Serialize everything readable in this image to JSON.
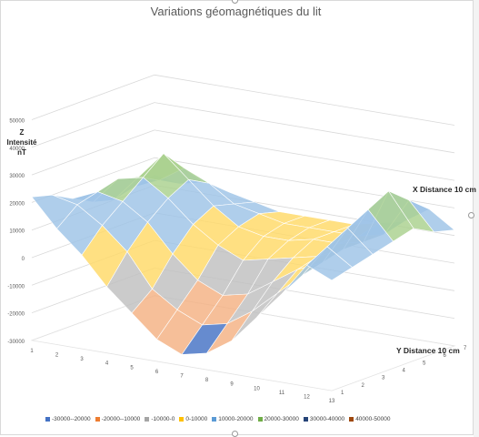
{
  "chart_data": {
    "type": "surface",
    "title": "Variations géomagnétiques du lit",
    "z_title_line1": "Z",
    "z_title_line2": "Intensité nT",
    "x_title": "X Distance 10 cm",
    "y_title": "Y Distance 10 cm",
    "z_ticks": [
      "50000",
      "40000",
      "30000",
      "20000",
      "10000",
      "0",
      "-10000",
      "-20000",
      "-30000"
    ],
    "z_values": [
      50000,
      40000,
      30000,
      20000,
      10000,
      0,
      -10000,
      -20000,
      -30000
    ],
    "zlim": [
      -30000,
      50000
    ],
    "x_ticks": [
      "1",
      "2",
      "3",
      "4",
      "5",
      "6",
      "7",
      "8",
      "9",
      "10",
      "11",
      "12",
      "13"
    ],
    "y_ticks": [
      "1",
      "2",
      "3",
      "4",
      "5",
      "6",
      "7"
    ],
    "grid": true,
    "legend_position": "bottom",
    "legend": [
      {
        "label": "-30000--20000",
        "color": "#4472c4"
      },
      {
        "label": "-20000--10000",
        "color": "#ed7d31"
      },
      {
        "label": "-10000-0",
        "color": "#a5a5a5"
      },
      {
        "label": "0-10000",
        "color": "#ffc000"
      },
      {
        "label": "10000-20000",
        "color": "#5b9bd5"
      },
      {
        "label": "20000-30000",
        "color": "#70ad47"
      },
      {
        "label": "30000-40000",
        "color": "#264478"
      },
      {
        "label": "40000-50000",
        "color": "#9e480e"
      }
    ],
    "values": [
      [
        22000,
        20000,
        16000,
        12000,
        10000,
        12000,
        14000
      ],
      [
        12000,
        18000,
        20000,
        22000,
        20000,
        16000,
        12000
      ],
      [
        4000,
        12000,
        18000,
        24000,
        30000,
        22000,
        14000
      ],
      [
        -6000,
        4000,
        12000,
        18000,
        22000,
        18000,
        12000
      ],
      [
        -14000,
        -8000,
        2000,
        10000,
        14000,
        12000,
        10000
      ],
      [
        -22000,
        -14000,
        -6000,
        4000,
        8000,
        10000,
        8000
      ],
      [
        -26000,
        -18000,
        -10000,
        0,
        6000,
        8000,
        8000
      ],
      [
        -24000,
        -16000,
        -8000,
        2000,
        6000,
        8000,
        8000
      ],
      [
        -18000,
        -10000,
        -2000,
        4000,
        8000,
        8000,
        8000
      ],
      [
        -8000,
        -2000,
        4000,
        6000,
        8000,
        8000,
        10000
      ],
      [
        2000,
        6000,
        8000,
        10000,
        10000,
        10000,
        12000
      ],
      [
        14000,
        18000,
        22000,
        26000,
        30000,
        24000,
        18000
      ],
      [
        10000,
        12000,
        14000,
        16000,
        18000,
        14000,
        12000
      ]
    ]
  }
}
